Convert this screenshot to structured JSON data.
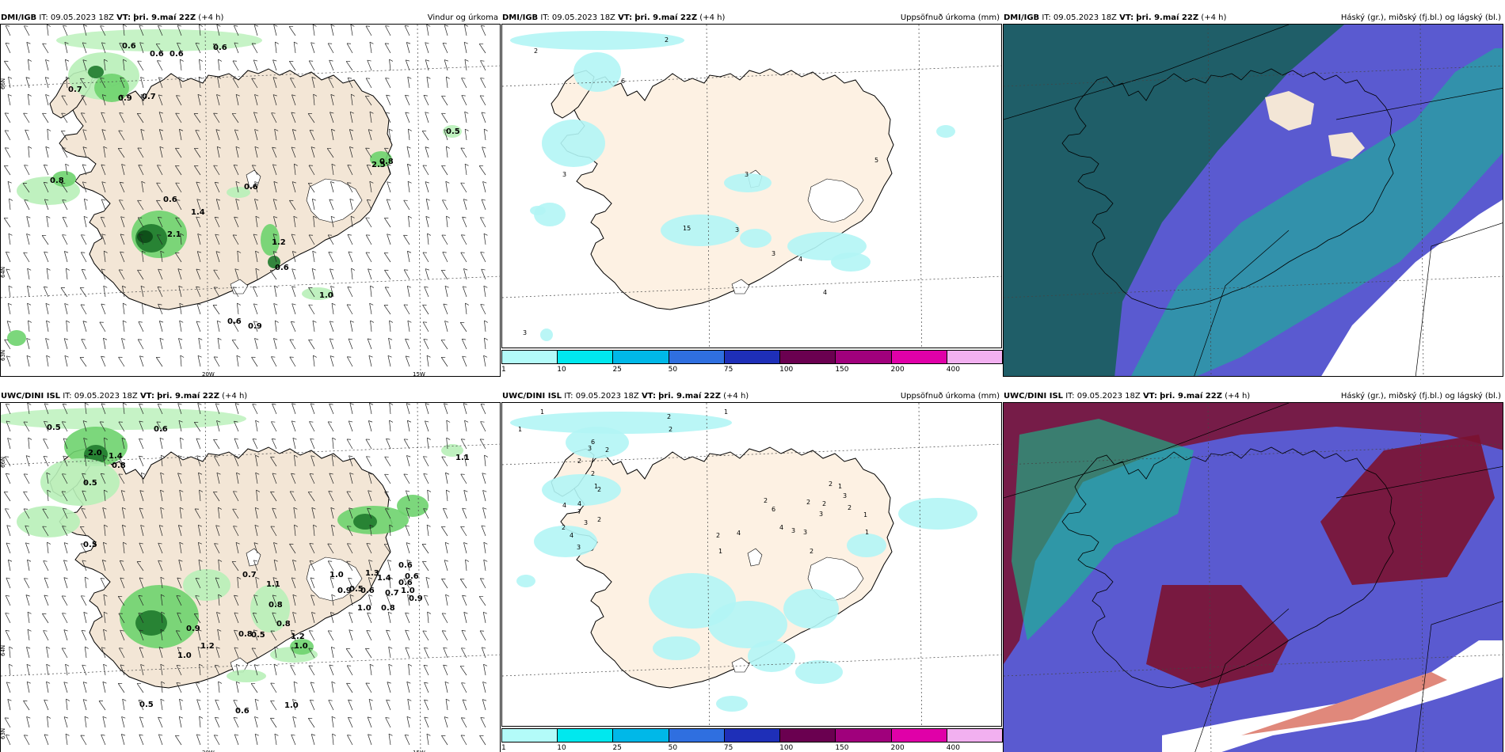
{
  "panels": [
    {
      "id": "p1",
      "col": 0,
      "row": 0,
      "model": "DMI/IGB",
      "it_label": "IT:",
      "it": "09.05.2023 18Z",
      "vt_label": "VT:",
      "vt": "þri. 9.maí 22Z",
      "lead": "(+4 h)",
      "product": "Vindur og úrkoma",
      "kind": "wind"
    },
    {
      "id": "p2",
      "col": 1,
      "row": 0,
      "model": "DMI/IGB",
      "it_label": "IT:",
      "it": "09.05.2023 18Z",
      "vt_label": "VT:",
      "vt": "þri. 9.maí 22Z",
      "lead": "(+4 h)",
      "product": "Uppsöfnuð úrkoma (mm)",
      "kind": "accum"
    },
    {
      "id": "p3",
      "col": 2,
      "row": 0,
      "model": "DMI/IGB",
      "it_label": "IT:",
      "it": "09.05.2023 18Z",
      "vt_label": "VT:",
      "vt": "þri. 9.maí 22Z",
      "lead": "(+4 h)",
      "product": "Háský (gr.), miðský (fj.bl.) og lágský (bl.)",
      "kind": "cloud"
    },
    {
      "id": "p4",
      "col": 0,
      "row": 1,
      "model": "UWC/DINI ISL",
      "it_label": "IT:",
      "it": "09.05.2023 18Z",
      "vt_label": "VT:",
      "vt": "þri. 9.maí 22Z",
      "lead": "(+4 h)",
      "product": "",
      "kind": "wind"
    },
    {
      "id": "p5",
      "col": 1,
      "row": 1,
      "model": "UWC/DINI ISL",
      "it_label": "IT:",
      "it": "09.05.2023 18Z",
      "vt_label": "VT:",
      "vt": "þri. 9.maí 22Z",
      "lead": "(+4 h)",
      "product": "Uppsöfnuð úrkoma (mm)",
      "kind": "accum"
    },
    {
      "id": "p6",
      "col": 2,
      "row": 1,
      "model": "UWC/DINI ISL",
      "it_label": "IT:",
      "it": "09.05.2023 18Z",
      "vt_label": "VT:",
      "vt": "þri. 9.maí 22Z",
      "lead": "(+4 h)",
      "product": "Háský (gr.), miðský (fj.bl.) og lágský (bl.)",
      "kind": "cloud"
    }
  ],
  "axis_labels": {
    "lat66": "66N",
    "lat64": "64N",
    "lat63": "63N",
    "lon20": "20W",
    "lon15": "15W"
  },
  "precip_labels_p1": [
    "0.6",
    "0.6",
    "0.6",
    "0.6",
    "0.7",
    "0.9",
    "0.7",
    "0.8",
    "0.6",
    "0.6",
    "1.4",
    "2.1",
    "1.2",
    "2.5",
    "0.6",
    "1.0",
    "0.6",
    "0.9",
    "0.5",
    "0.8"
  ],
  "precip_labels_p4": [
    "0.5",
    "0.6",
    "2.0",
    "1.4",
    "0.8",
    "0.5",
    "0.5",
    "0.7",
    "1.1",
    "0.8",
    "0.9",
    "1.2",
    "1.0",
    "0.8",
    "1.0",
    "1.3",
    "1.4",
    "0.6",
    "0.9",
    "0.5",
    "0.7",
    "0.8",
    "1.0",
    "0.9",
    "0.6",
    "0.6",
    "1.0",
    "0.6",
    "1.2",
    "1.0",
    "0.5",
    "0.8",
    "0.5",
    "1.0",
    "0.6",
    "1.1"
  ],
  "accum_labels_p2": [
    "2",
    "2",
    "6",
    "3",
    "3",
    "15",
    "3",
    "3",
    "4",
    "5",
    "4",
    "3"
  ],
  "accum_labels_p5": [
    "1",
    "1",
    "2",
    "2",
    "1",
    "6",
    "3",
    "2",
    "2",
    "2",
    "1",
    "2",
    "4",
    "4",
    "7",
    "3",
    "2",
    "2",
    "4",
    "3",
    "2",
    "4",
    "1",
    "2",
    "6",
    "4",
    "2",
    "2",
    "3",
    "3",
    "2",
    "1",
    "1",
    "2",
    "1",
    "3",
    "2",
    "3"
  ],
  "colorbar": {
    "ticks": [
      "1",
      "10",
      "25",
      "50",
      "75",
      "100",
      "150",
      "200",
      "400"
    ],
    "colors": [
      "#b3fbf9",
      "#00e8ee",
      "#00b8e8",
      "#2f6fe0",
      "#1e2fb8",
      "#6a0050",
      "#a0007c",
      "#e000a8",
      "#f2b0f0"
    ]
  },
  "colors": {
    "land": "#f3e6d6",
    "land_accum": "#fdf1e3",
    "green_light": "#b8f0b8",
    "green_mid": "#6ed36e",
    "green_dark": "#1f7a2c",
    "green_very_dark": "#0b4a16",
    "cyan_precip": "#b3f5f5",
    "cloud_high": "#1c5f62",
    "cloud_mid": "#5a5ad0",
    "cloud_low": "#13c08c",
    "cloud_high2": "#7b1230"
  }
}
